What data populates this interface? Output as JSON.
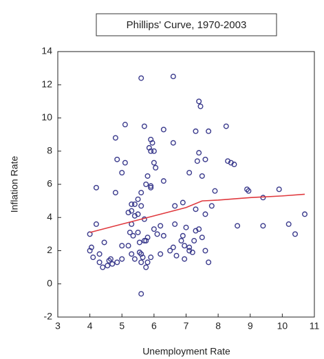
{
  "chart_data": {
    "type": "scatter",
    "title": "Phillips' Curve, 1970-2003",
    "x_label": "Unemployment Rate",
    "y_label": "Inflation Rate",
    "xlim": [
      3,
      11
    ],
    "xticks": [
      3,
      4,
      5,
      6,
      7,
      8,
      9,
      10,
      11
    ],
    "ylim": [
      -2,
      14
    ],
    "yticks": [
      -2,
      0,
      2,
      4,
      6,
      8,
      10,
      12,
      14
    ],
    "series": [
      {
        "type": "scatter",
        "color": "#3a3a8c",
        "x": [
          5.6,
          6.6,
          7.4,
          7.45,
          5.1,
          5.7,
          6.3,
          7.3,
          7.7,
          8.25,
          4.8,
          5.9,
          5.95,
          6.6,
          5.85,
          5.9,
          6.0,
          7.4,
          4.85,
          5.1,
          6.0,
          7.35,
          7.6,
          8.3,
          8.4,
          8.5,
          5.0,
          6.05,
          5.8,
          7.1,
          7.5,
          6.3,
          5.75,
          5.9,
          4.2,
          4.8,
          5.6,
          5.9,
          7.9,
          8.9,
          8.95,
          9.9,
          5.3,
          5.5,
          5.4,
          5.6,
          5.2,
          5.3,
          5.5,
          5.4,
          6.65,
          6.9,
          7.8,
          9.4,
          7.3,
          7.6,
          10.7,
          5.7,
          5.3,
          4.2,
          6.2,
          6.0,
          6.65,
          7.0,
          7.3,
          7.4,
          8.6,
          9.4,
          10.2,
          4.0,
          5.5,
          5.35,
          5.25,
          5.8,
          6.1,
          6.3,
          6.9,
          7.25,
          7.5,
          10.4,
          4.05,
          4.45,
          5.0,
          5.2,
          5.55,
          5.7,
          5.75,
          6.6,
          6.85,
          6.95,
          7.1,
          7.6,
          4.0,
          4.1,
          4.3,
          4.3,
          4.6,
          4.7,
          4.85,
          5.0,
          5.3,
          5.4,
          5.55,
          5.6,
          5.65,
          5.6,
          5.8,
          5.75,
          5.9,
          6.2,
          6.5,
          6.7,
          6.95,
          7.1,
          7.2,
          7.7,
          4.4,
          4.55,
          4.65,
          5.6
        ],
        "values": [
          12.4,
          12.5,
          11.0,
          10.7,
          9.6,
          9.5,
          9.3,
          9.2,
          9.2,
          9.5,
          8.8,
          8.7,
          8.5,
          8.5,
          8.2,
          8.0,
          8.0,
          7.9,
          7.5,
          7.3,
          7.3,
          7.4,
          7.5,
          7.4,
          7.3,
          7.2,
          6.7,
          7.0,
          6.5,
          6.7,
          6.5,
          6.2,
          6.0,
          5.9,
          5.8,
          5.5,
          5.5,
          5.8,
          5.6,
          5.7,
          5.6,
          5.7,
          4.8,
          5.1,
          4.8,
          4.7,
          4.3,
          4.4,
          4.2,
          4.1,
          4.7,
          4.9,
          4.7,
          5.2,
          4.5,
          4.2,
          4.2,
          3.9,
          3.6,
          3.6,
          3.5,
          3.3,
          3.6,
          3.4,
          3.2,
          3.3,
          3.5,
          3.5,
          3.6,
          3.0,
          3.1,
          2.9,
          3.1,
          2.8,
          3.0,
          2.9,
          2.9,
          2.6,
          2.8,
          3.0,
          2.2,
          2.5,
          2.3,
          2.3,
          2.5,
          2.6,
          2.6,
          2.2,
          2.6,
          2.3,
          2.2,
          2.0,
          2.0,
          1.6,
          1.8,
          1.3,
          1.4,
          1.2,
          1.3,
          1.5,
          1.8,
          1.5,
          1.9,
          1.8,
          1.6,
          1.3,
          1.3,
          1.0,
          1.6,
          1.8,
          2.0,
          1.7,
          1.5,
          2.0,
          1.9,
          1.3,
          1.0,
          1.1,
          1.5,
          -0.6
        ]
      },
      {
        "type": "line",
        "color": "#e0393e",
        "x": [
          4,
          5,
          6,
          7,
          7.5,
          8,
          9,
          10,
          10.7
        ],
        "values": [
          3.1,
          3.6,
          4.1,
          4.6,
          5.0,
          5.05,
          5.2,
          5.3,
          5.4
        ]
      }
    ]
  }
}
